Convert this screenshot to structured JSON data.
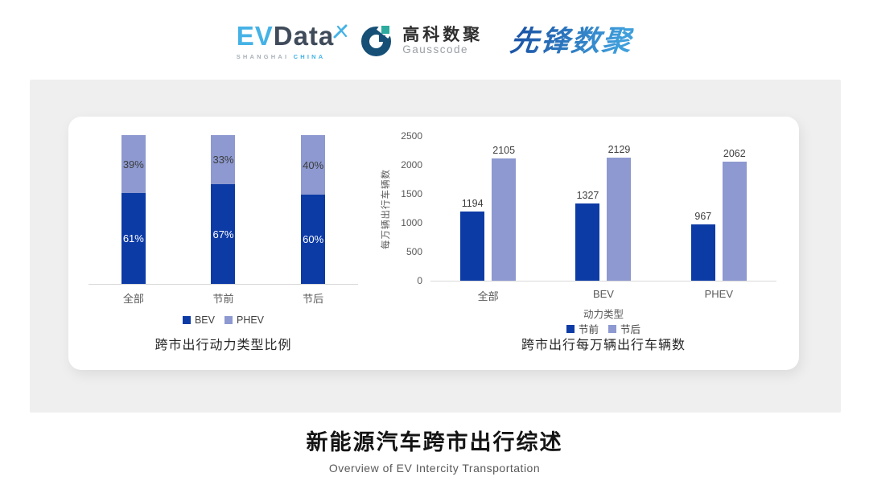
{
  "header": {
    "evdata": {
      "ev": "EV",
      "data": "Data",
      "sub_left": "SHANGHAI",
      "sub_right": "CHINA"
    },
    "gausscode": {
      "cn": "高科数聚",
      "en": "Gausscode"
    },
    "xianfeng": {
      "text": "先锋数聚"
    }
  },
  "colors": {
    "series_dark": "#0d3ba6",
    "series_light": "#8d99d0",
    "accent_lightblue": "#45b2e6",
    "accent_slate": "#3f4b5a",
    "gauss_navy": "#175077",
    "gauss_teal": "#2cab9e",
    "card_bg": "#efefef",
    "axis_line": "#d9d9d9"
  },
  "chart_data": [
    {
      "type": "bar",
      "stacked": true,
      "title": "跨市出行动力类型比例",
      "categories": [
        "全部",
        "节前",
        "节后"
      ],
      "series": [
        {
          "name": "BEV",
          "values": [
            61,
            67,
            60
          ],
          "color": "#0d3ba6",
          "label_suffix": "%"
        },
        {
          "name": "PHEV",
          "values": [
            39,
            33,
            40
          ],
          "color": "#8d99d0",
          "label_suffix": "%"
        }
      ],
      "unit": "%",
      "ylim": [
        0,
        100
      ],
      "grid": false,
      "legend_position": "bottom"
    },
    {
      "type": "bar",
      "stacked": false,
      "title": "跨市出行每万辆出行车辆数",
      "categories": [
        "全部",
        "BEV",
        "PHEV"
      ],
      "xlabel": "动力类型",
      "ylabel": "每万辆出行车辆数",
      "ylim": [
        0,
        2500
      ],
      "yticks": [
        0,
        500,
        1000,
        1500,
        2000,
        2500
      ],
      "series": [
        {
          "name": "节前",
          "values": [
            1194,
            1327,
            967
          ],
          "color": "#0d3ba6"
        },
        {
          "name": "节后",
          "values": [
            2105,
            2129,
            2062
          ],
          "color": "#8d99d0"
        }
      ],
      "grid": false,
      "legend_position": "bottom"
    }
  ],
  "footer": {
    "title": "新能源汽车跨市出行综述",
    "subtitle": "Overview of EV Intercity Transportation"
  }
}
